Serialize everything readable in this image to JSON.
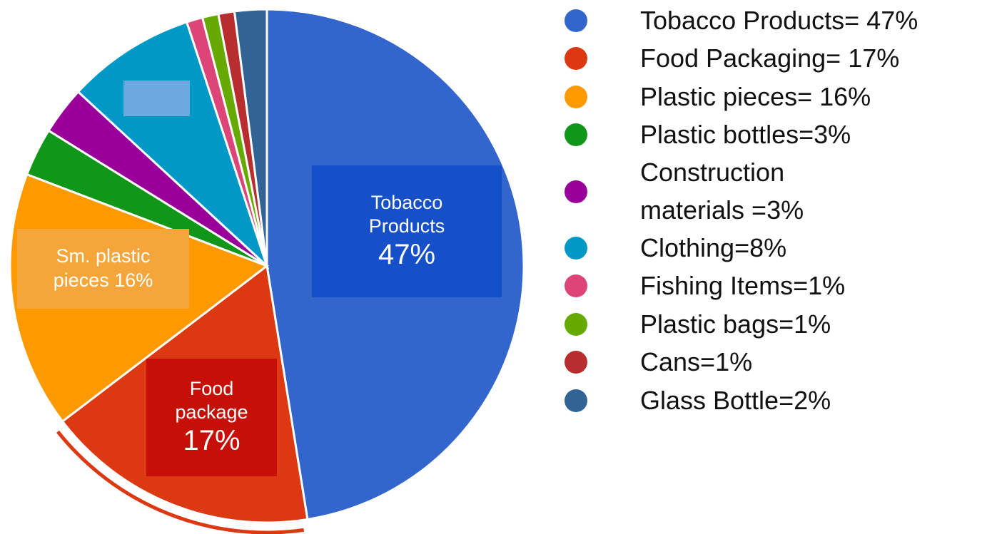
{
  "chart_data": {
    "type": "pie",
    "slices": [
      {
        "label": "Tobacco Products",
        "value": 47,
        "color": "#3366cc"
      },
      {
        "label": "Food Packaging",
        "value": 17,
        "color": "#dc3912"
      },
      {
        "label": "Plastic pieces",
        "value": 16,
        "color": "#ff9900"
      },
      {
        "label": "Plastic bottles",
        "value": 3,
        "color": "#109618"
      },
      {
        "label": "Construction materials",
        "value": 3,
        "color": "#990099"
      },
      {
        "label": "Clothing",
        "value": 8,
        "color": "#0099c6"
      },
      {
        "label": "Fishing Items",
        "value": 1,
        "color": "#dd4477"
      },
      {
        "label": "Plastic bags",
        "value": 1,
        "color": "#66aa00"
      },
      {
        "label": "Cans",
        "value": 1,
        "color": "#b82e2e"
      },
      {
        "label": "Glass Bottle",
        "value": 2,
        "color": "#316395"
      }
    ],
    "legend_position": "right",
    "highlight_arc_color": "#dc3912"
  },
  "pie_labels": {
    "tobacco": {
      "text_line1": "Tobacco",
      "text_line2": "Products",
      "pct": "47%"
    },
    "food": {
      "text_line1": "Food",
      "text_line2": "package",
      "pct": "17%"
    },
    "plastic": {
      "text_line1": "Sm. plastic",
      "text_line2": "pieces 16%"
    }
  },
  "legend": [
    {
      "text": "Tobacco Products= 47%",
      "color": "#3366cc"
    },
    {
      "text": "Food Packaging= 17%",
      "color": "#dc3912"
    },
    {
      "text": "Plastic pieces= 16%",
      "color": "#ff9900"
    },
    {
      "text": "Plastic bottles=3%",
      "color": "#109618"
    },
    {
      "text": "Construction materials =3%",
      "color": "#990099"
    },
    {
      "text": "Clothing=8%",
      "color": "#0099c6"
    },
    {
      "text": "Fishing Items=1%",
      "color": "#dd4477"
    },
    {
      "text": "Plastic bags=1%",
      "color": "#66aa00"
    },
    {
      "text": "Cans=1%",
      "color": "#b82e2e"
    },
    {
      "text": "Glass Bottle=2%",
      "color": "#316395"
    }
  ]
}
